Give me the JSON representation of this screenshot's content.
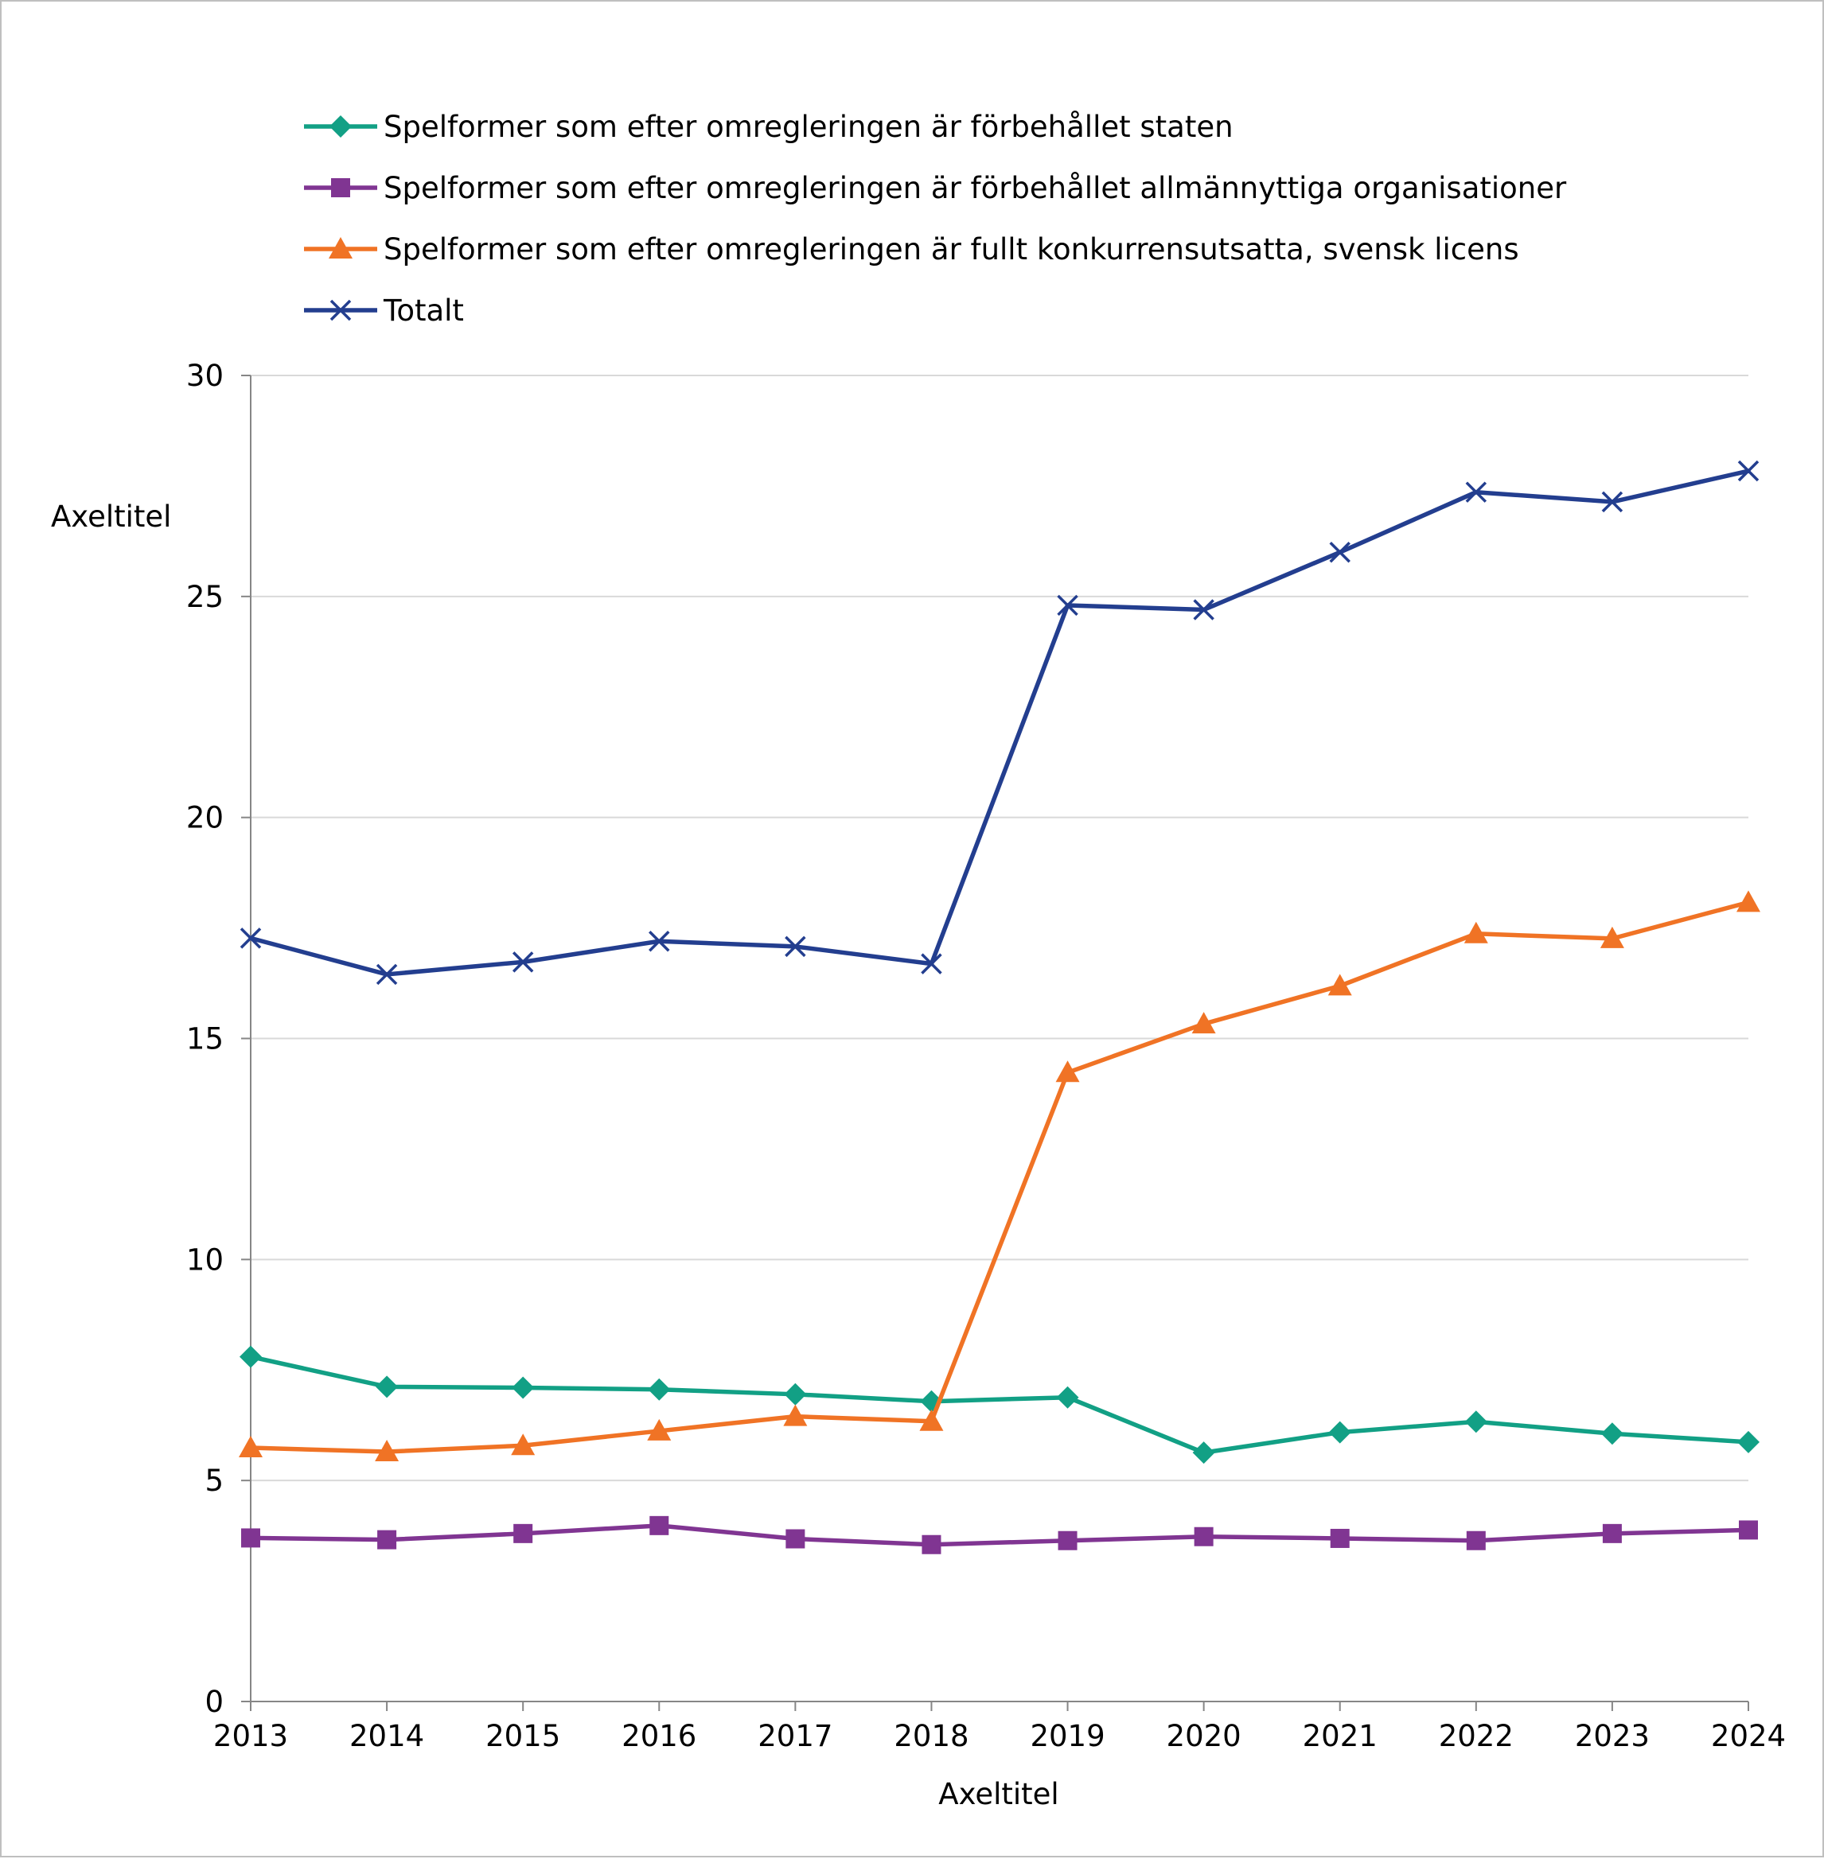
{
  "chart_data": {
    "type": "line",
    "title": "",
    "xlabel": "Axeltitel",
    "ylabel": "Axeltitel",
    "ylim": [
      0,
      30
    ],
    "yticks": [
      "0",
      "5",
      "10",
      "15",
      "20",
      "25",
      "30"
    ],
    "grid": true,
    "legend_position": "top",
    "categories": [
      "2013",
      "2014",
      "2015",
      "2016",
      "2017",
      "2018",
      "2019",
      "2020",
      "2021",
      "2022",
      "2023",
      "2024"
    ],
    "series": [
      {
        "name": "Spelformer som efter omregleringen är förbehållet staten",
        "color": "#12a085",
        "marker": "diamond",
        "values": [
          7.8,
          7.12,
          7.1,
          7.06,
          6.95,
          6.79,
          6.88,
          5.63,
          6.09,
          6.33,
          6.06,
          5.87
        ]
      },
      {
        "name": "Spelformer som efter omregleringen är förbehållet allmännyttiga organisationer",
        "color": "#803592",
        "marker": "square",
        "values": [
          3.7,
          3.66,
          3.8,
          3.98,
          3.68,
          3.55,
          3.64,
          3.73,
          3.69,
          3.64,
          3.8,
          3.88
        ]
      },
      {
        "name": "Spelformer som efter omregleringen är fullt konkurrensutsatta, svensk licens",
        "color": "#f07325",
        "marker": "triangle",
        "values": [
          5.74,
          5.65,
          5.79,
          6.12,
          6.45,
          6.34,
          14.23,
          15.33,
          16.19,
          17.37,
          17.26,
          18.08
        ]
      },
      {
        "name": "Totalt",
        "color": "#233e8f",
        "marker": "x",
        "values": [
          17.27,
          16.45,
          16.73,
          17.2,
          17.08,
          16.69,
          24.8,
          24.7,
          26.0,
          27.36,
          27.14,
          27.84
        ]
      }
    ]
  }
}
